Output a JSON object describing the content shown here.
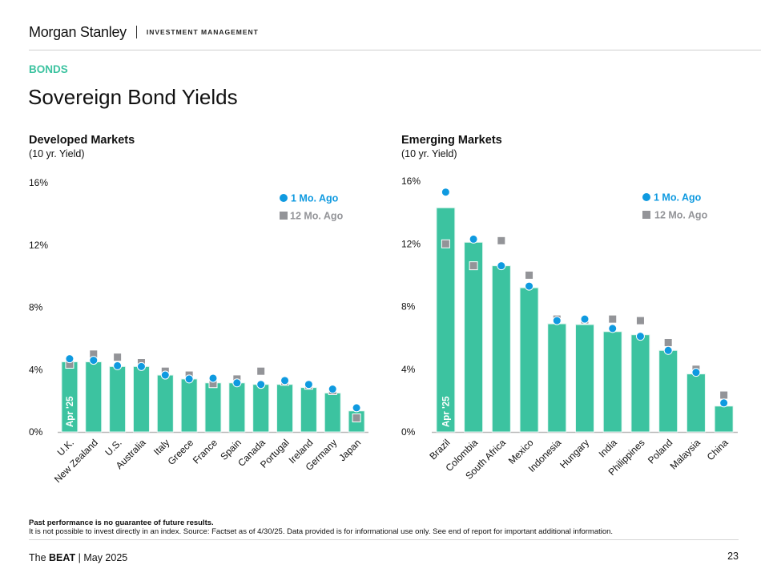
{
  "header": {
    "brand": "Morgan Stanley",
    "division": "INVESTMENT MANAGEMENT"
  },
  "section_label": "BONDS",
  "page_title": "Sovereign Bond Yields",
  "footer": {
    "disclaimer_bold": "Past performance is no guarantee of future results.",
    "disclaimer": "It is not possible to invest directly in an index. Source: Factset as of 4/30/25. Data provided is for informational use only. See end of report for important additional information.",
    "publication_prefix": "The",
    "publication_name": "BEAT",
    "publication_suffix": "| May 2025",
    "page_number": "23"
  },
  "colors": {
    "bar": "#3cc3a0",
    "one_month": "#0f9ae0",
    "twelve_month": "#939498",
    "section": "#3cc3a0"
  },
  "chart_data": [
    {
      "type": "bar",
      "title": "Developed Markets",
      "subtitle": "(10 yr. Yield)",
      "bar_label": "Apr '25",
      "ylim": [
        0,
        16
      ],
      "yticks": [
        0,
        4,
        8,
        12,
        16
      ],
      "ytick_labels": [
        "0%",
        "4%",
        "8%",
        "12%",
        "16%"
      ],
      "legend": [
        "1 Mo. Ago",
        "12 Mo. Ago"
      ],
      "legend_position": "top-right",
      "categories": [
        "U.K.",
        "New Zealand",
        "U.S.",
        "Australia",
        "Italy",
        "Greece",
        "France",
        "Spain",
        "Canada",
        "Portugal",
        "Ireland",
        "Germany",
        "Japan"
      ],
      "series": [
        {
          "name": "Apr '25",
          "values": [
            4.5,
            4.5,
            4.2,
            4.2,
            3.65,
            3.4,
            3.15,
            3.15,
            3.05,
            3.05,
            2.85,
            2.5,
            1.35
          ]
        },
        {
          "name": "1 Mo. Ago",
          "values": [
            4.7,
            4.6,
            4.25,
            4.2,
            3.65,
            3.4,
            3.45,
            3.15,
            3.05,
            3.3,
            3.05,
            2.75,
            1.55
          ]
        },
        {
          "name": "12 Mo. Ago",
          "values": [
            4.35,
            5.0,
            4.8,
            4.45,
            3.9,
            3.65,
            3.1,
            3.4,
            3.9,
            3.25,
            3.0,
            2.65,
            0.9
          ]
        }
      ]
    },
    {
      "type": "bar",
      "title": "Emerging Markets",
      "subtitle": "(10 yr. Yield)",
      "bar_label": "Apr '25",
      "ylim": [
        0,
        16
      ],
      "yticks": [
        0,
        4,
        8,
        12,
        16
      ],
      "ytick_labels": [
        "0%",
        "4%",
        "8%",
        "12%",
        "16%"
      ],
      "legend": [
        "1 Mo. Ago",
        "12 Mo. Ago"
      ],
      "legend_position": "top-right",
      "categories": [
        "Brazil",
        "Colombia",
        "South Africa",
        "Mexico",
        "Indonesia",
        "Hungary",
        "India",
        "Philippines",
        "Poland",
        "Malaysia",
        "China"
      ],
      "series": [
        {
          "name": "Apr '25",
          "values": [
            14.3,
            12.1,
            10.6,
            9.2,
            6.9,
            6.85,
            6.4,
            6.2,
            5.2,
            3.7,
            1.65
          ]
        },
        {
          "name": "1 Mo. Ago",
          "values": [
            15.3,
            12.3,
            10.6,
            9.3,
            7.1,
            7.2,
            6.6,
            6.1,
            5.2,
            3.8,
            1.85
          ]
        },
        {
          "name": "12 Mo. Ago",
          "values": [
            12.0,
            10.6,
            12.2,
            10.0,
            7.2,
            7.15,
            7.2,
            7.1,
            5.7,
            4.0,
            2.35
          ]
        }
      ]
    }
  ]
}
